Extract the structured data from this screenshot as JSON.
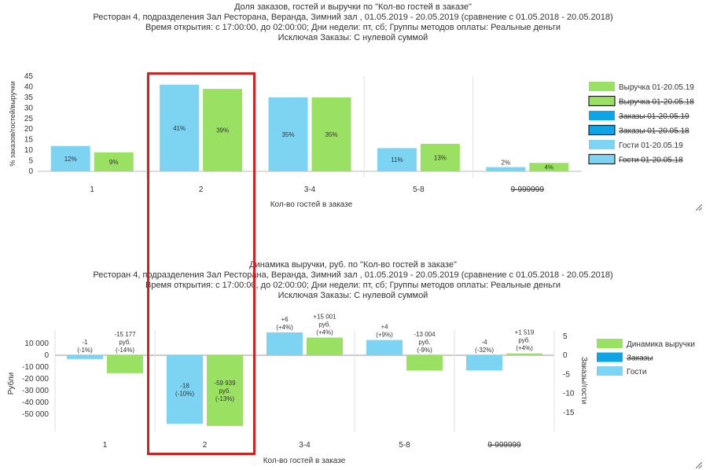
{
  "chart_data": [
    {
      "type": "bar",
      "title": "Доля заказов, гостей и выручки по \"Кол-во гостей в заказе\"",
      "subtitle_lines": [
        "Ресторан 4, подразделения Зал Ресторана, Веранда, Зимний зал  , 01.05.2019 - 20.05.2019 (сравнение с 01.05.2018 - 20.05.2018)",
        "Время открытия: с 17:00:00, до 02:00:00; Дни недели: пт,  сб; Группы методов оплаты: Реальные деньги",
        "Исключая Заказы: С нулевой суммой"
      ],
      "xlabel": "Кол-во гостей в заказе",
      "ylabel": "% заказов/гостей/выручки",
      "ylim": [
        0,
        45
      ],
      "yticks": [
        0,
        5,
        10,
        15,
        20,
        25,
        30,
        35,
        40,
        45
      ],
      "categories": [
        "1",
        "2",
        "3-4",
        "5-8",
        "9-999999"
      ],
      "series": [
        {
          "name": "Гости 01-20.05.19",
          "color": "#7dd3f2",
          "values": [
            12,
            41,
            35,
            11,
            2
          ],
          "labels": [
            "12%",
            "41%",
            "35%",
            "11%",
            "2%"
          ]
        },
        {
          "name": "Выручка 01-20.05.19",
          "color": "#99e063",
          "values": [
            9,
            39,
            35,
            13,
            4
          ],
          "labels": [
            "9%",
            "39%",
            "35%",
            "13%",
            "4%"
          ]
        }
      ],
      "legend": [
        {
          "name": "Выручка 01-20.05.19",
          "color": "#99e063",
          "struck": false,
          "outlined": false
        },
        {
          "name": "Выручка 01-20.05.18",
          "color": "#99e063",
          "struck": true,
          "outlined": true
        },
        {
          "name": "Заказы 01-20.05.19",
          "color": "#0ea5e6",
          "struck": true,
          "outlined": false
        },
        {
          "name": "Заказы 01-20.05.18",
          "color": "#0ea5e6",
          "struck": true,
          "outlined": true
        },
        {
          "name": "Гости 01-20.05.19",
          "color": "#7dd3f2",
          "struck": false,
          "outlined": false
        },
        {
          "name": "Гости 01-20.05.18",
          "color": "#7dd3f2",
          "struck": true,
          "outlined": true
        }
      ],
      "legend_position": "right",
      "grid": "vertical category separators"
    },
    {
      "type": "bar",
      "title": "Динамика выручки, руб. по \"Кол-во гостей в заказе\"",
      "subtitle_lines": [
        "Ресторан 4, подразделения Зал Ресторана, Веранда, Зимний зал  , 01.05.2019 - 20.05.2019 (сравнение с 01.05.2018 - 20.05.2018)",
        "Время открытия: с 17:00:00, до 02:00:00; Дни недели: пт,  сб; Группы методов оплаты: Реальные деньги",
        "Исключая Заказы: С нулевой суммой"
      ],
      "xlabel": "Кол-во гостей в заказе",
      "ylabel": "Рубли",
      "ylabel_right": "Заказы/гости",
      "ylim": [
        -60000,
        17000
      ],
      "yticks": [
        10000,
        0,
        -10000,
        -20000,
        -30000,
        -40000,
        -50000
      ],
      "ytick_labels": [
        "10 000",
        "0",
        "-10 000",
        "-20 000",
        "-30 000",
        "-40 000",
        "-50 000"
      ],
      "ylim_right": [
        -18,
        5.5
      ],
      "yticks_right": [
        5,
        0,
        -5,
        -10,
        -15
      ],
      "categories": [
        "1",
        "2",
        "3-4",
        "5-8",
        "9-999999"
      ],
      "series": [
        {
          "name": "Гости",
          "axis": "right",
          "color": "#7dd3f2",
          "values": [
            -1,
            -18,
            6,
            4,
            -4
          ],
          "labels": [
            [
              "-1",
              "(-1%)"
            ],
            [
              "-18",
              "(-10%)"
            ],
            [
              "+6",
              "(+4%)"
            ],
            [
              "+4",
              "(+9%)"
            ],
            [
              "-4",
              "(-32%)"
            ]
          ]
        },
        {
          "name": "Динамика выручки",
          "axis": "left",
          "color": "#99e063",
          "values": [
            -15177,
            -59939,
            15001,
            -13004,
            1519
          ],
          "labels": [
            [
              "-15 177",
              "руб.",
              "(-14%)"
            ],
            [
              "-59 939",
              "руб.",
              "(-13%)"
            ],
            [
              "+15 001",
              "руб.",
              "(+4%)"
            ],
            [
              "-13 004",
              "руб.",
              "(-9%)"
            ],
            [
              "+1 519",
              "руб.",
              "(+4%)"
            ]
          ]
        }
      ],
      "legend": [
        {
          "name": "Динамика выручки",
          "color": "#99e063",
          "struck": false
        },
        {
          "name": "Заказы",
          "color": "#0ea5e6",
          "struck": true
        },
        {
          "name": "Гости",
          "color": "#7dd3f2",
          "struck": false
        }
      ],
      "legend_position": "right",
      "grid": "vertical category separators"
    }
  ]
}
